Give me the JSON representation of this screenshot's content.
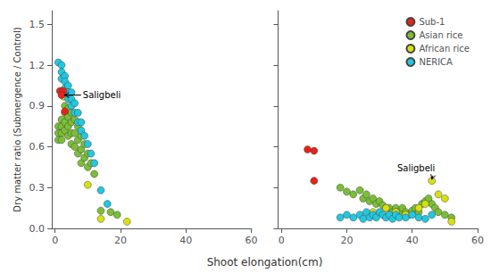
{
  "chart_data": [
    {
      "type": "scatter",
      "xlabel": "Shoot elongation(cm)",
      "ylabel": "Dry matter ratio (Submergence / Control)",
      "series": [
        {
          "name": "Sub-1",
          "color": "#e8221a",
          "x": [
            1.5,
            2.5,
            2.0,
            3.0
          ],
          "values": [
            1.01,
            1.01,
            0.98,
            0.86
          ]
        },
        {
          "name": "Asian rice",
          "color": "#7abf35",
          "x": [
            1,
            1,
            1,
            2,
            2,
            2,
            2,
            3,
            3,
            3,
            3,
            4,
            4,
            4,
            4,
            5,
            5,
            5,
            5,
            6,
            6,
            6,
            7,
            7,
            7,
            8,
            8,
            8,
            9,
            9,
            10,
            10,
            11,
            12,
            14,
            17,
            19
          ],
          "values": [
            0.75,
            0.7,
            0.65,
            0.8,
            0.75,
            0.7,
            0.65,
            0.9,
            0.85,
            0.78,
            0.72,
            0.88,
            0.82,
            0.75,
            0.68,
            0.85,
            0.78,
            0.7,
            0.62,
            0.8,
            0.7,
            0.6,
            0.75,
            0.65,
            0.55,
            0.68,
            0.58,
            0.48,
            0.62,
            0.52,
            0.55,
            0.45,
            0.48,
            0.4,
            0.13,
            0.12,
            0.1
          ]
        },
        {
          "name": "African rice",
          "color": "#d8e010",
          "x": [
            2.5,
            10,
            14,
            22
          ],
          "values": [
            0.97,
            0.32,
            0.07,
            0.05
          ]
        },
        {
          "name": "NERICA",
          "color": "#20c8e0",
          "x": [
            1,
            2,
            2,
            2,
            3,
            3,
            3,
            4,
            4,
            4,
            5,
            5,
            5,
            6,
            6,
            7,
            7,
            8,
            8,
            9,
            10,
            11,
            12,
            14,
            16
          ],
          "values": [
            1.22,
            1.2,
            1.15,
            1.1,
            1.12,
            1.08,
            1.03,
            1.05,
            1.0,
            0.95,
            1.0,
            0.95,
            0.9,
            0.92,
            0.85,
            0.85,
            0.78,
            0.78,
            0.72,
            0.68,
            0.62,
            0.55,
            0.48,
            0.28,
            0.18
          ]
        }
      ],
      "xlim": [
        -1,
        60
      ],
      "ylim": [
        0,
        1.6
      ],
      "xticks": [
        0,
        20,
        40,
        60
      ],
      "yticks": [
        {
          "value": 0.0,
          "label": "0.0"
        },
        0.3,
        0.6,
        0.9,
        1.2,
        1.5
      ],
      "grid": false,
      "annotations": [
        {
          "text": "Saligbeli",
          "x": 8.5,
          "y": 0.98,
          "arrow_x": 2.8,
          "arrow_y": 0.98
        }
      ]
    },
    {
      "type": "scatter",
      "series": [
        {
          "name": "Sub-1",
          "color": "#e8221a",
          "x": [
            8,
            10,
            10
          ],
          "values": [
            0.58,
            0.57,
            0.35
          ]
        },
        {
          "name": "Asian rice",
          "color": "#7abf35",
          "x": [
            18,
            20,
            22,
            24,
            25,
            26,
            27,
            28,
            29,
            30,
            31,
            32,
            33,
            34,
            35,
            36,
            37,
            38,
            39,
            40,
            41,
            42,
            43,
            44,
            45,
            46,
            47,
            48,
            50,
            52
          ],
          "values": [
            0.3,
            0.27,
            0.25,
            0.28,
            0.22,
            0.25,
            0.2,
            0.22,
            0.18,
            0.2,
            0.17,
            0.15,
            0.15,
            0.12,
            0.15,
            0.12,
            0.15,
            0.12,
            0.1,
            0.13,
            0.15,
            0.12,
            0.18,
            0.2,
            0.22,
            0.18,
            0.15,
            0.12,
            0.1,
            0.08
          ]
        },
        {
          "name": "African rice",
          "color": "#d8e010",
          "x": [
            28,
            32,
            35,
            38,
            42,
            44,
            46,
            48,
            50,
            52
          ],
          "values": [
            0.12,
            0.15,
            0.12,
            0.1,
            0.15,
            0.18,
            0.35,
            0.25,
            0.22,
            0.05
          ]
        },
        {
          "name": "NERICA",
          "color": "#20c8e0",
          "x": [
            18,
            20,
            22,
            24,
            25,
            26,
            27,
            28,
            29,
            30,
            31,
            32,
            33,
            34,
            35,
            36,
            38,
            40,
            42,
            44,
            46
          ],
          "values": [
            0.08,
            0.1,
            0.08,
            0.1,
            0.07,
            0.12,
            0.08,
            0.1,
            0.08,
            0.12,
            0.1,
            0.08,
            0.1,
            0.07,
            0.1,
            0.08,
            0.08,
            0.1,
            0.08,
            0.07,
            0.1
          ]
        }
      ],
      "xlim": [
        -1,
        60
      ],
      "ylim": [
        0,
        1.6
      ],
      "xticks": [
        0,
        20,
        40,
        60
      ],
      "yticks": [
        {
          "value": 0.0,
          "label": "0.0"
        },
        0.3,
        0.6,
        0.9,
        1.2,
        1.5
      ],
      "grid": false,
      "tick_labels": "x",
      "legend": "upper right",
      "annotations": [
        {
          "text": "Saligbeli",
          "x": 47,
          "y": 0.44,
          "arrow_x": 46,
          "arrow_y": 0.36
        }
      ]
    }
  ]
}
